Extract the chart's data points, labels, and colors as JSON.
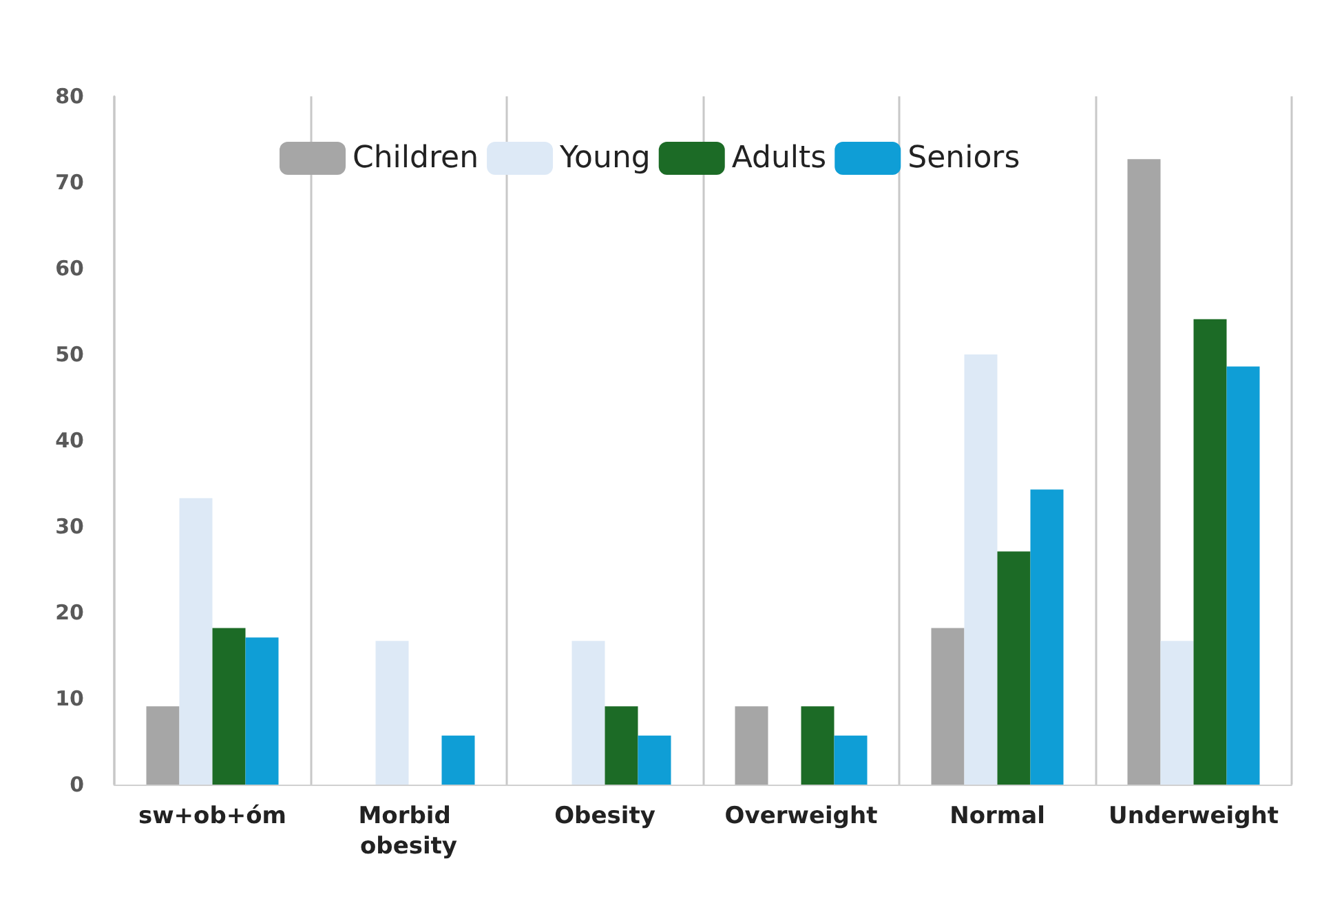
{
  "chart_data": {
    "type": "bar",
    "categories": [
      "sw+ob+óm",
      "Morbid obesity",
      "Obesity",
      "Overweight",
      "Normal",
      "Underweight"
    ],
    "series": [
      {
        "name": "Children",
        "color": "#a6a6a6",
        "values": [
          9.1,
          0,
          0,
          9.1,
          18.2,
          72.7
        ]
      },
      {
        "name": "Young",
        "color": "#dde9f6",
        "values": [
          33.3,
          16.7,
          16.7,
          0,
          50,
          16.7
        ]
      },
      {
        "name": "Adults",
        "color": "#1c6b26",
        "values": [
          18.2,
          0,
          9.1,
          9.1,
          27.1,
          54.1
        ]
      },
      {
        "name": "Seniors",
        "color": "#0f9ed6",
        "values": [
          17.1,
          5.7,
          5.7,
          5.7,
          34.3,
          48.6
        ]
      }
    ],
    "ylim": [
      0,
      80
    ],
    "yticks": [
      0,
      10,
      20,
      30,
      40,
      50,
      60,
      70,
      80
    ],
    "grid": "x",
    "legend": "top"
  }
}
